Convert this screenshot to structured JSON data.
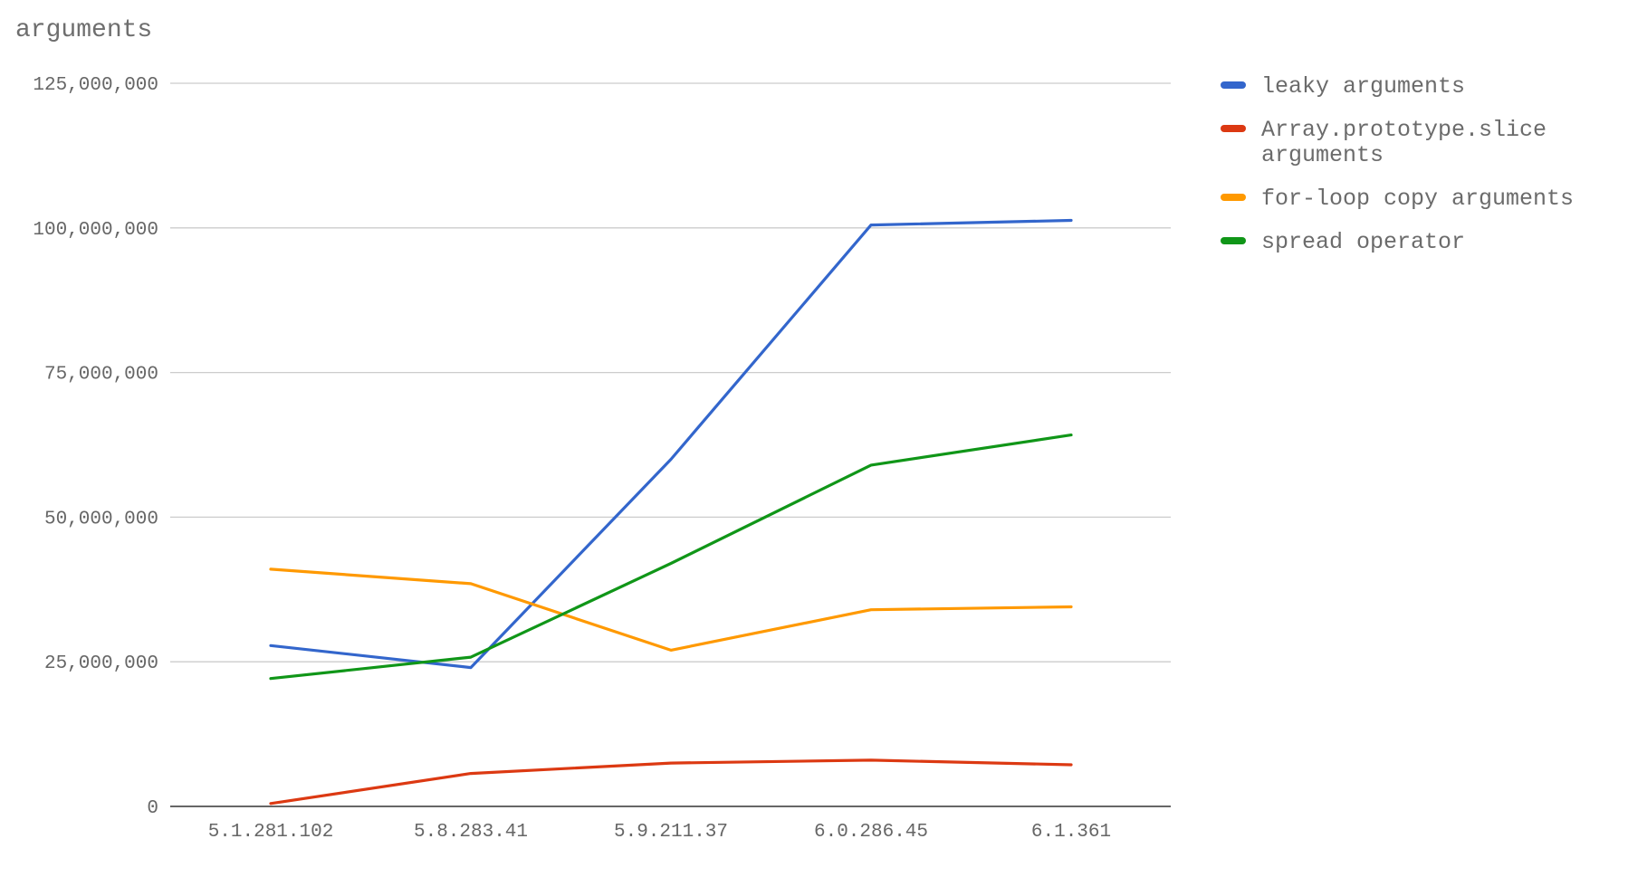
{
  "chart_data": {
    "type": "line",
    "title": "arguments",
    "categories": [
      "5.1.281.102",
      "5.8.283.41",
      "5.9.211.37",
      "6.0.286.45",
      "6.1.361"
    ],
    "ylim": [
      0,
      125000000
    ],
    "yticks": [
      0,
      25000000,
      50000000,
      75000000,
      100000000,
      125000000
    ],
    "ytick_labels": [
      "0",
      "25,000,000",
      "50,000,000",
      "75,000,000",
      "100,000,000",
      "125,000,000"
    ],
    "grid": true,
    "legend_position": "right",
    "series": [
      {
        "name": "leaky arguments",
        "color": "#3366cc",
        "values": [
          27800000,
          24000000,
          60000000,
          100500000,
          101300000
        ]
      },
      {
        "name": "Array.prototype.slice arguments",
        "name_lines": [
          "Array.prototype.slice",
          "arguments"
        ],
        "color": "#dc3912",
        "values": [
          500000,
          5700000,
          7500000,
          8000000,
          7200000
        ]
      },
      {
        "name": "for-loop copy arguments",
        "color": "#ff9900",
        "values": [
          41000000,
          38500000,
          27000000,
          34000000,
          34500000
        ]
      },
      {
        "name": "spread operator",
        "color": "#109618",
        "values": [
          22100000,
          25800000,
          42000000,
          59000000,
          64200000
        ]
      }
    ]
  }
}
